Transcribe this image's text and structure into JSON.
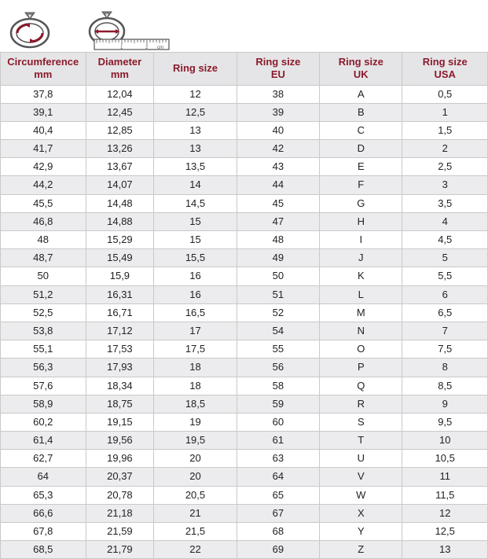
{
  "table": {
    "header_color": "#8b1a2b",
    "header_bg": "#e5e5e7",
    "row_alt_bg": "#ececee",
    "row_bg": "#ffffff",
    "border_color": "#c9c9c9",
    "columns": [
      {
        "line1": "Circumference",
        "line2": "mm"
      },
      {
        "line1": "Diameter",
        "line2": "mm"
      },
      {
        "line1": "Ring size",
        "line2": ""
      },
      {
        "line1": "Ring size",
        "line2": "EU"
      },
      {
        "line1": "Ring size",
        "line2": "UK"
      },
      {
        "line1": "Ring size",
        "line2": "USA"
      }
    ],
    "rows": [
      [
        "37,8",
        "12,04",
        "12",
        "38",
        "A",
        "0,5"
      ],
      [
        "39,1",
        "12,45",
        "12,5",
        "39",
        "B",
        "1"
      ],
      [
        "40,4",
        "12,85",
        "13",
        "40",
        "C",
        "1,5"
      ],
      [
        "41,7",
        "13,26",
        "13",
        "42",
        "D",
        "2"
      ],
      [
        "42,9",
        "13,67",
        "13,5",
        "43",
        "E",
        "2,5"
      ],
      [
        "44,2",
        "14,07",
        "14",
        "44",
        "F",
        "3"
      ],
      [
        "45,5",
        "14,48",
        "14,5",
        "45",
        "G",
        "3,5"
      ],
      [
        "46,8",
        "14,88",
        "15",
        "47",
        "H",
        "4"
      ],
      [
        "48",
        "15,29",
        "15",
        "48",
        "I",
        "4,5"
      ],
      [
        "48,7",
        "15,49",
        "15,5",
        "49",
        "J",
        "5"
      ],
      [
        "50",
        "15,9",
        "16",
        "50",
        "K",
        "5,5"
      ],
      [
        "51,2",
        "16,31",
        "16",
        "51",
        "L",
        "6"
      ],
      [
        "52,5",
        "16,71",
        "16,5",
        "52",
        "M",
        "6,5"
      ],
      [
        "53,8",
        "17,12",
        "17",
        "54",
        "N",
        "7"
      ],
      [
        "55,1",
        "17,53",
        "17,5",
        "55",
        "O",
        "7,5"
      ],
      [
        "56,3",
        "17,93",
        "18",
        "56",
        "P",
        "8"
      ],
      [
        "57,6",
        "18,34",
        "18",
        "58",
        "Q",
        "8,5"
      ],
      [
        "58,9",
        "18,75",
        "18,5",
        "59",
        "R",
        "9"
      ],
      [
        "60,2",
        "19,15",
        "19",
        "60",
        "S",
        "9,5"
      ],
      [
        "61,4",
        "19,56",
        "19,5",
        "61",
        "T",
        "10"
      ],
      [
        "62,7",
        "19,96",
        "20",
        "63",
        "U",
        "10,5"
      ],
      [
        "64",
        "20,37",
        "20",
        "64",
        "V",
        "11"
      ],
      [
        "65,3",
        "20,78",
        "20,5",
        "65",
        "W",
        "11,5"
      ],
      [
        "66,6",
        "21,18",
        "21",
        "67",
        "X",
        "12"
      ],
      [
        "67,8",
        "21,59",
        "21,5",
        "68",
        "Y",
        "12,5"
      ],
      [
        "68,5",
        "21,79",
        "22",
        "69",
        "Z",
        "13"
      ]
    ]
  },
  "icons": {
    "circumference_label": "Circumference ring icon",
    "diameter_label": "Diameter ring with ruler icon",
    "ruler_unit": "cm",
    "ruler_marks": [
      "1",
      "2"
    ]
  }
}
